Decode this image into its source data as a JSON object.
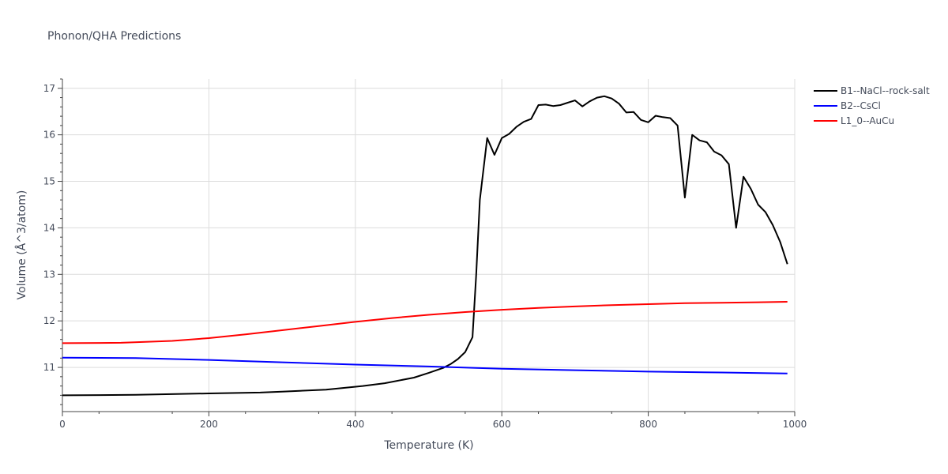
{
  "chart_data": {
    "type": "line",
    "title": "Phonon/QHA Predictions",
    "xlabel": "Temperature (K)",
    "ylabel": "Volume (Å^3/atom)",
    "xlim": [
      0,
      1000
    ],
    "ylim": [
      10.05,
      17.2
    ],
    "xticks": [
      0,
      200,
      400,
      600,
      800,
      1000
    ],
    "yticks": [
      11,
      12,
      13,
      14,
      15,
      16,
      17
    ],
    "grid": true,
    "legend": "top-right",
    "series": [
      {
        "name": "B1--NaCl--rock-salt",
        "color": "#000000",
        "x": [
          0,
          100,
          200,
          270,
          300,
          360,
          410,
          440,
          480,
          500,
          520,
          530,
          540,
          550,
          560,
          565,
          570,
          580,
          590,
          600,
          610,
          620,
          630,
          640,
          650,
          660,
          670,
          680,
          690,
          700,
          710,
          720,
          730,
          740,
          750,
          760,
          770,
          780,
          790,
          800,
          810,
          820,
          830,
          840,
          850,
          860,
          870,
          880,
          890,
          900,
          910,
          920,
          930,
          940,
          950,
          960,
          970,
          980,
          990
        ],
        "y": [
          10.4,
          10.41,
          10.44,
          10.46,
          10.48,
          10.52,
          10.6,
          10.66,
          10.78,
          10.88,
          10.99,
          11.07,
          11.18,
          11.33,
          11.65,
          13.0,
          14.6,
          15.93,
          15.57,
          15.93,
          16.02,
          16.17,
          16.28,
          16.34,
          16.64,
          16.65,
          16.62,
          16.64,
          16.69,
          16.74,
          16.61,
          16.72,
          16.8,
          16.83,
          16.78,
          16.67,
          16.48,
          16.49,
          16.32,
          16.27,
          16.41,
          16.38,
          16.36,
          16.2,
          14.65,
          16.0,
          15.88,
          15.84,
          15.64,
          15.56,
          15.37,
          14.0,
          15.1,
          14.84,
          14.5,
          14.34,
          14.06,
          13.7,
          13.22
        ]
      },
      {
        "name": "B2--CsCl",
        "color": "#0000ff",
        "x": [
          0,
          100,
          200,
          300,
          400,
          500,
          600,
          700,
          800,
          900,
          990
        ],
        "y": [
          11.21,
          11.2,
          11.16,
          11.11,
          11.06,
          11.02,
          10.97,
          10.94,
          10.91,
          10.89,
          10.87
        ]
      },
      {
        "name": "L1_0--AuCu",
        "color": "#ff0000",
        "x": [
          0,
          80,
          150,
          200,
          250,
          300,
          350,
          400,
          450,
          500,
          550,
          600,
          650,
          700,
          750,
          800,
          850,
          900,
          950,
          990
        ],
        "y": [
          11.52,
          11.53,
          11.57,
          11.63,
          11.71,
          11.8,
          11.89,
          11.98,
          12.06,
          12.13,
          12.19,
          12.24,
          12.28,
          12.31,
          12.34,
          12.36,
          12.38,
          12.39,
          12.4,
          12.41
        ]
      }
    ]
  }
}
